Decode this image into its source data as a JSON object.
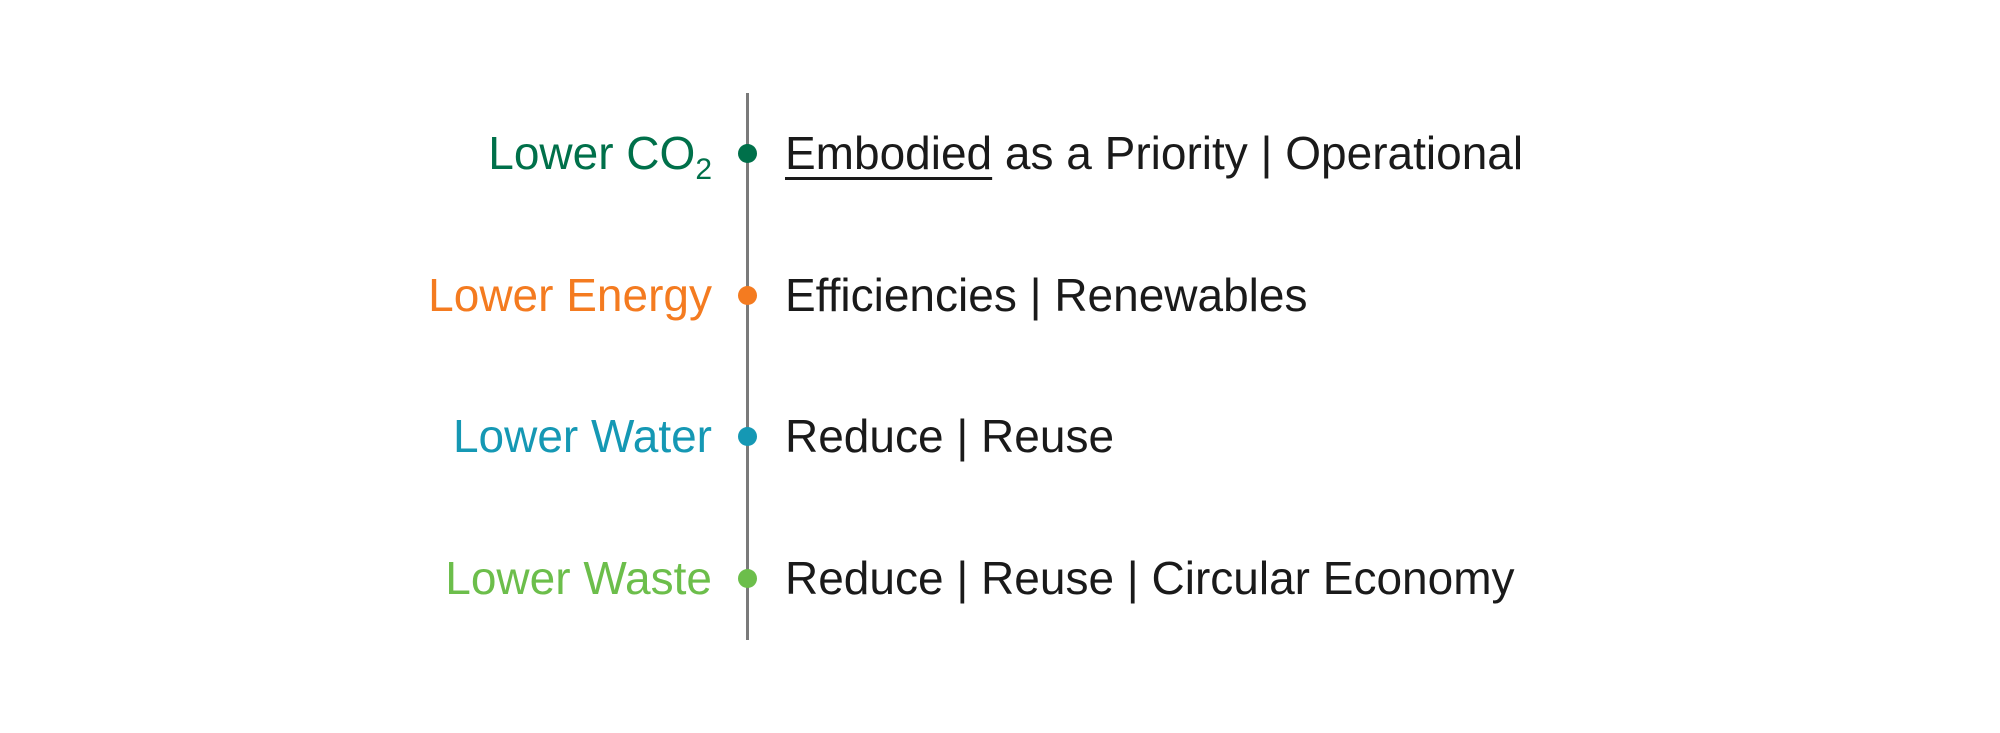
{
  "rows": [
    {
      "label": "Lower CO",
      "label_sub": "2",
      "color": "#00704A",
      "desc_emph": "Embodied",
      "desc_rest": " as a Priority | Operational"
    },
    {
      "label": "Lower Energy",
      "label_sub": "",
      "color": "#F47B20",
      "desc_emph": "",
      "desc_rest": "Efficiencies | Renewables"
    },
    {
      "label": "Lower Water",
      "label_sub": "",
      "color": "#1598B4",
      "desc_emph": "",
      "desc_rest": "Reduce | Reuse"
    },
    {
      "label": "Lower Waste",
      "label_sub": "",
      "color": "#6CBE4B",
      "desc_emph": "",
      "desc_rest": "Reduce | Reuse | Circular Economy"
    }
  ]
}
